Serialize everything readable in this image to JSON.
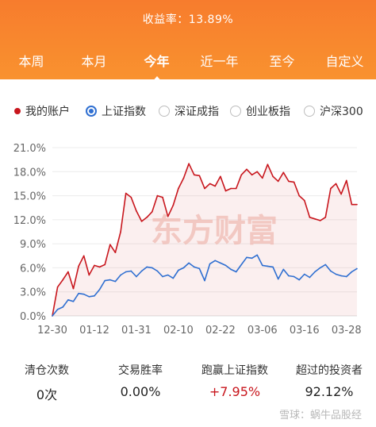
{
  "header": {
    "return_text": "收益率：13.89%"
  },
  "tabs": [
    {
      "label": "本周",
      "active": false
    },
    {
      "label": "本月",
      "active": false
    },
    {
      "label": "今年",
      "active": true
    },
    {
      "label": "近一年",
      "active": false
    },
    {
      "label": "至今",
      "active": false
    },
    {
      "label": "自定义",
      "active": false
    }
  ],
  "legend": [
    {
      "label": "我的账户",
      "kind": "dot",
      "color": "#c8161d"
    },
    {
      "label": "上证指数",
      "kind": "radio",
      "selected": true,
      "color": "#2f6fd1"
    },
    {
      "label": "深证成指",
      "kind": "radio",
      "selected": false
    },
    {
      "label": "创业板指",
      "kind": "radio",
      "selected": false
    },
    {
      "label": "沪深300",
      "kind": "radio",
      "selected": false
    }
  ],
  "chart_data": {
    "type": "line",
    "watermark": "东方财富",
    "x_ticks": [
      "12-30",
      "01-12",
      "01-31",
      "02-10",
      "02-22",
      "03-06",
      "03-16",
      "03-28"
    ],
    "y_ticks": [
      "0.0%",
      "3.0%",
      "6.0%",
      "9.0%",
      "12.0%",
      "15.0%",
      "18.0%",
      "21.0%"
    ],
    "ylim": [
      0,
      21
    ],
    "grid": true,
    "series": [
      {
        "name": "我的账户",
        "color": "#c8161d",
        "values": [
          0.0,
          3.6,
          4.5,
          5.5,
          3.4,
          6.2,
          7.5,
          5.1,
          6.3,
          6.1,
          6.4,
          8.9,
          7.9,
          10.5,
          15.3,
          14.8,
          13.1,
          11.8,
          12.3,
          13.0,
          15.0,
          14.8,
          12.4,
          13.8,
          15.9,
          17.2,
          19.0,
          17.6,
          17.5,
          15.9,
          16.5,
          16.2,
          17.4,
          15.6,
          15.9,
          15.9,
          17.6,
          18.3,
          17.6,
          18.0,
          17.2,
          18.9,
          17.4,
          16.8,
          17.9,
          16.8,
          16.7,
          15.0,
          14.4,
          12.3,
          12.1,
          11.9,
          12.3,
          15.9,
          16.5,
          15.2,
          16.9,
          13.9,
          13.9
        ],
        "fill": true
      },
      {
        "name": "上证指数",
        "color": "#2f6fd1",
        "values": [
          0.0,
          0.8,
          1.1,
          2.0,
          1.8,
          2.8,
          2.7,
          2.4,
          2.5,
          3.3,
          4.4,
          4.5,
          4.3,
          5.1,
          5.5,
          5.6,
          4.9,
          5.6,
          6.1,
          6.0,
          5.6,
          4.9,
          5.1,
          4.7,
          5.7,
          6.0,
          6.6,
          6.1,
          5.9,
          4.4,
          6.5,
          6.9,
          6.6,
          6.3,
          5.8,
          5.5,
          6.4,
          7.3,
          7.2,
          7.6,
          6.3,
          6.2,
          6.1,
          4.6,
          5.8,
          5.0,
          4.9,
          4.5,
          5.2,
          4.8,
          5.5,
          6.0,
          6.4,
          5.6,
          5.2,
          5.0,
          4.9,
          5.5,
          5.9
        ]
      }
    ]
  },
  "stats": [
    {
      "label": "清仓次数",
      "value": "0次",
      "highlight": false
    },
    {
      "label": "交易胜率",
      "value": "0.00%",
      "highlight": false
    },
    {
      "label": "跑赢上证指数",
      "value": "+7.95%",
      "highlight": true
    },
    {
      "label": "超过的投资者",
      "value": "92.12%",
      "highlight": false
    }
  ],
  "watermark_text": "雪球：蜗牛品股经"
}
